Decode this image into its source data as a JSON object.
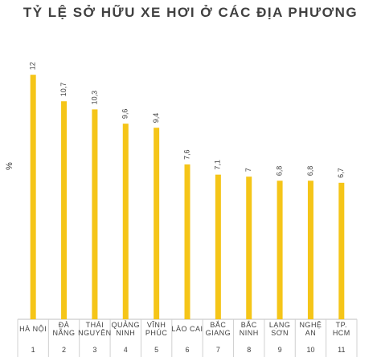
{
  "chart_data": {
    "type": "bar",
    "title": "TỶ LỆ SỞ HỮU XE HƠI Ở CÁC ĐỊA PHƯƠNG",
    "ylabel": "%",
    "xlabel": "",
    "ylim": [
      0,
      13
    ],
    "grid": false,
    "legend": "none",
    "bar_color": "#F5C518",
    "categories": [
      {
        "name_lines": [
          "HÀ NỘI"
        ],
        "rank": "1"
      },
      {
        "name_lines": [
          "ĐÀ",
          "NẴNG"
        ],
        "rank": "2"
      },
      {
        "name_lines": [
          "THÁI",
          "NGUYÊN"
        ],
        "rank": "3"
      },
      {
        "name_lines": [
          "QUẢNG",
          "NINH"
        ],
        "rank": "4"
      },
      {
        "name_lines": [
          "VĨNH",
          "PHÚC"
        ],
        "rank": "5"
      },
      {
        "name_lines": [
          "LÀO CAI"
        ],
        "rank": "6"
      },
      {
        "name_lines": [
          "BẮC",
          "GIANG"
        ],
        "rank": "7"
      },
      {
        "name_lines": [
          "BẮC",
          "NINH"
        ],
        "rank": "8"
      },
      {
        "name_lines": [
          "LẠNG",
          "SƠN"
        ],
        "rank": "9"
      },
      {
        "name_lines": [
          "NGHỆ",
          "AN"
        ],
        "rank": "10"
      },
      {
        "name_lines": [
          "TP.",
          "HCM"
        ],
        "rank": "11"
      }
    ],
    "values": [
      12,
      10.7,
      10.3,
      9.6,
      9.4,
      7.6,
      7.1,
      7,
      6.8,
      6.8,
      6.7
    ],
    "value_labels": [
      "12",
      "10,7",
      "10,3",
      "9,6",
      "9,4",
      "7,6",
      "7,1",
      "7",
      "6,8",
      "6,8",
      "6,7"
    ]
  }
}
